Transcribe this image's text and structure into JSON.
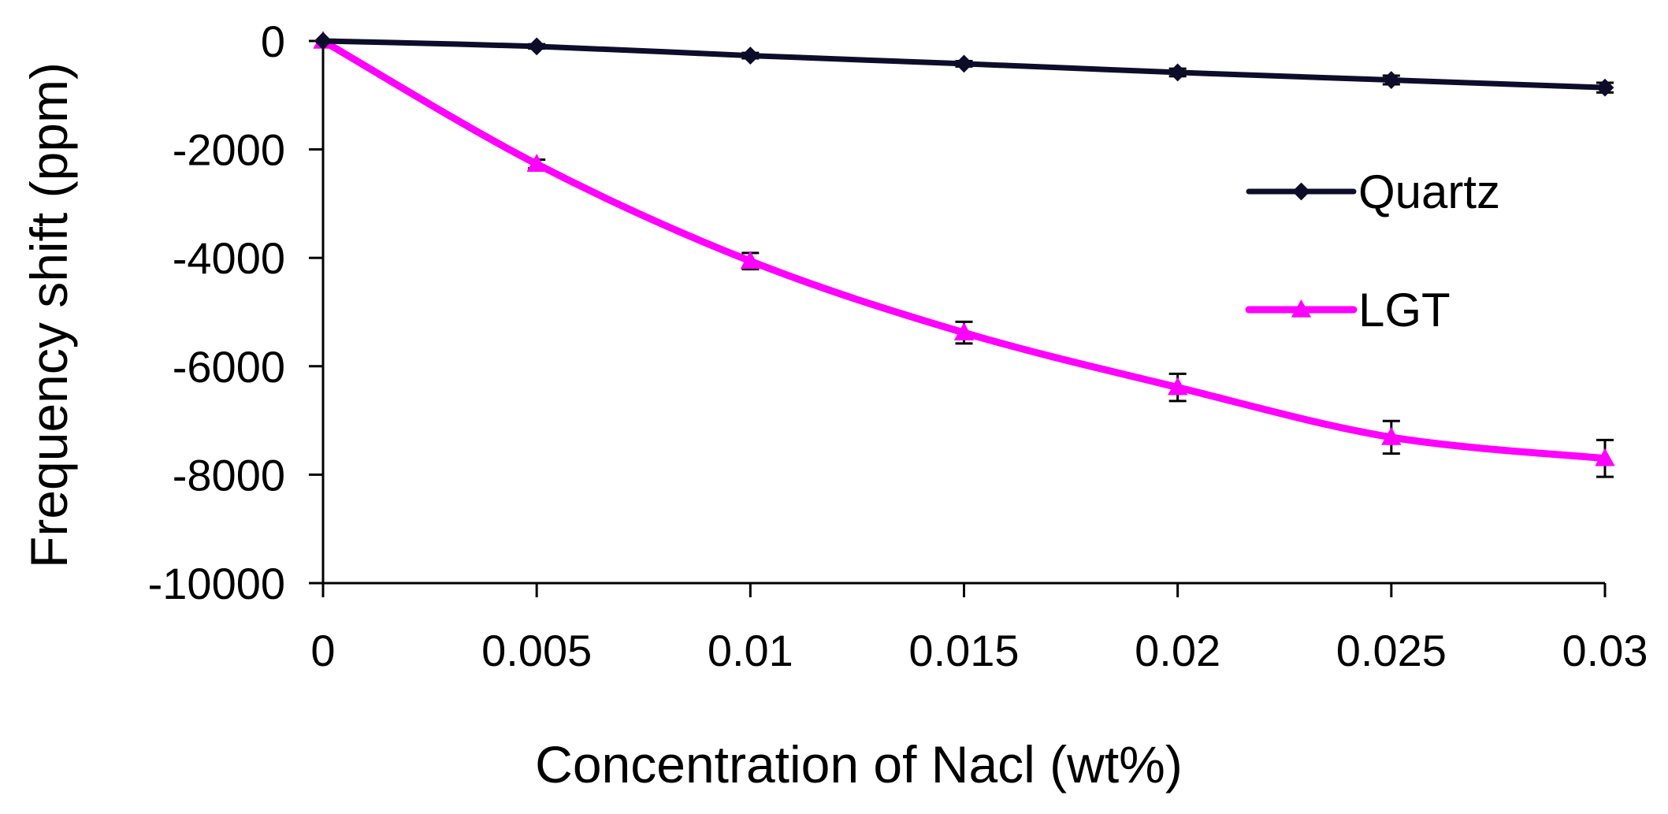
{
  "chart_data": {
    "type": "line",
    "title": "",
    "xlabel": "Concentration of Nacl (wt%)",
    "ylabel": "Frequency shift (ppm)",
    "xlim": [
      0,
      0.03
    ],
    "ylim": [
      -10000,
      0
    ],
    "x_ticks": [
      "0",
      "0.005",
      "0.01",
      "0.015",
      "0.02",
      "0.025",
      "0.03"
    ],
    "y_ticks": [
      "0",
      "-2000",
      "-4000",
      "-6000",
      "-8000",
      "-10000"
    ],
    "x": [
      0,
      0.005,
      0.01,
      0.015,
      0.02,
      0.025,
      0.03
    ],
    "legend_position": "right",
    "grid": false,
    "series": [
      {
        "name": "Quartz",
        "color": "#0d0d2b",
        "marker": "diamond",
        "values": [
          0,
          -100,
          -270,
          -420,
          -580,
          -720,
          -860
        ],
        "errors": [
          0,
          40,
          50,
          50,
          70,
          80,
          90
        ]
      },
      {
        "name": "LGT",
        "color": "#ff00ff",
        "marker": "triangle",
        "values": [
          0,
          -2270,
          -4060,
          -5380,
          -6390,
          -7310,
          -7700
        ],
        "errors": [
          0,
          80,
          150,
          200,
          250,
          300,
          340
        ]
      }
    ]
  }
}
